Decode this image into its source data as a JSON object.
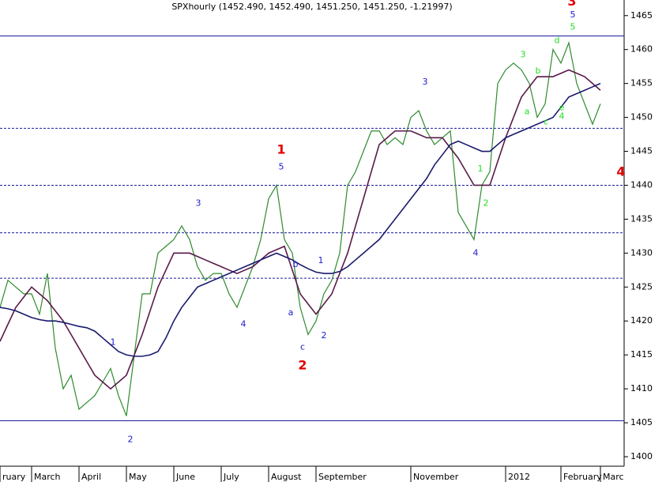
{
  "chart_data": {
    "type": "line",
    "title": "SPXhourly (1452.490, 1452.490, 1451.250, 1451.250, -1.21997)",
    "categories": [
      "ruary",
      null,
      null,
      null,
      "March",
      null,
      null,
      null,
      null,
      null,
      "April",
      null,
      null,
      null,
      null,
      null,
      "May",
      null,
      null,
      null,
      null,
      null,
      "June",
      null,
      null,
      null,
      null,
      null,
      "July",
      null,
      null,
      null,
      null,
      null,
      "August",
      null,
      null,
      null,
      null,
      null,
      "September",
      null,
      null,
      null,
      null,
      null,
      null,
      null,
      null,
      null,
      null,
      null,
      "November",
      null,
      null,
      null,
      null,
      null,
      null,
      null,
      null,
      null,
      null,
      null,
      "2012",
      null,
      null,
      null,
      null,
      null,
      null,
      "February",
      null,
      null,
      null,
      null,
      "Marc"
    ],
    "series": [
      {
        "color": "#2e8b2e",
        "values": [
          1422,
          1426,
          1425,
          1424,
          1424,
          1421,
          1427,
          1416,
          1410,
          1412,
          1407,
          1408,
          1409,
          1411,
          1413,
          1409,
          1406,
          1415,
          1424,
          1424,
          1430,
          1431,
          1432,
          1434,
          1432,
          1428,
          1426,
          1427,
          1427,
          1424,
          1422,
          1425,
          1428,
          1432,
          1438,
          1440,
          1432,
          1430,
          1422,
          1418,
          1420,
          1424,
          1426,
          1430,
          1440,
          1442,
          1445,
          1448,
          1448,
          1446,
          1447,
          1446,
          1450,
          1451,
          1448,
          1446,
          1447,
          1448,
          1436,
          1434,
          1432,
          1440,
          1442,
          1455,
          1457,
          1458,
          1457,
          1455,
          1450,
          1452,
          1460,
          1458,
          1461,
          1455,
          1452,
          1449,
          1452
        ]
      },
      {
        "color": "#5a1a4a",
        "values": [
          1417,
          1419.5,
          1422,
          1423.5,
          1425,
          1424,
          1423,
          1421.5,
          1420,
          1418,
          1416,
          1414,
          1412,
          1411,
          1410,
          1411,
          1412,
          1415,
          1418,
          1421.5,
          1425,
          1427.5,
          1430,
          1430,
          1430,
          1429.5,
          1429,
          1428.5,
          1428,
          1427.5,
          1427,
          1427.5,
          1428,
          1429,
          1430,
          1430.5,
          1431,
          1427.5,
          1424,
          1422.5,
          1421,
          1422.5,
          1424,
          1427,
          1430,
          1434,
          1438,
          1442,
          1446,
          1447,
          1448,
          1448,
          1448,
          1447.5,
          1447,
          1447,
          1447,
          1445.5,
          1444,
          1442,
          1440,
          1440,
          1440,
          1443.5,
          1447,
          1450,
          1453,
          1454.5,
          1456,
          1456,
          1456,
          1456.5,
          1457,
          1456.5,
          1456,
          1455,
          1454
        ]
      },
      {
        "color": "#1a1a6e",
        "values": [
          1422,
          1421.8,
          1421.5,
          1421,
          1420.5,
          1420.2,
          1420,
          1420,
          1419.8,
          1419.5,
          1419.2,
          1419,
          1418.5,
          1417.5,
          1416.5,
          1415.5,
          1415,
          1414.8,
          1414.8,
          1415,
          1415.5,
          1417.5,
          1420,
          1422,
          1423.5,
          1425,
          1425.5,
          1426,
          1426.5,
          1427,
          1427.5,
          1428,
          1428.5,
          1429,
          1429.5,
          1430,
          1429.5,
          1429,
          1428.3,
          1427.7,
          1427.2,
          1427,
          1427,
          1427.3,
          1428,
          1429,
          1430,
          1431,
          1432,
          1433.5,
          1435,
          1436.5,
          1438,
          1439.5,
          1441,
          1443,
          1444.5,
          1446,
          1446.5,
          1446,
          1445.5,
          1445,
          1445,
          1446,
          1447,
          1447.5,
          1448,
          1448.5,
          1449,
          1449.5,
          1450,
          1451.5,
          1453,
          1453.5,
          1454,
          1454.5,
          1455
        ]
      }
    ],
    "ylim": [
      1398.6,
      1467.3
    ],
    "yticks": [
      1400,
      1405,
      1410,
      1415,
      1420,
      1425,
      1430,
      1435,
      1440,
      1445,
      1450,
      1455,
      1460,
      1465
    ],
    "hlines": [
      {
        "value": 1462,
        "style": "solid",
        "color": "#1a1a9e"
      },
      {
        "value": 1405.3,
        "style": "solid",
        "color": "#1a1a9e"
      },
      {
        "value": 1448.4,
        "style": "dashed",
        "color": "#1a1a9e"
      },
      {
        "value": 1440,
        "style": "dashed",
        "color": "#1a1a9e"
      },
      {
        "value": 1433,
        "style": "dashed",
        "color": "#1a1a9e"
      },
      {
        "value": 1426.3,
        "style": "dashed",
        "color": "#1a1a9e"
      }
    ],
    "annotations": [
      {
        "text": "1",
        "x": 35.6,
        "y": 1445.2,
        "color": "#e00000",
        "bold": true
      },
      {
        "text": "5",
        "x": 35.6,
        "y": 1442.7,
        "color": "#1a1acc"
      },
      {
        "text": "2",
        "x": 38.3,
        "y": 1413.4,
        "color": "#e00000",
        "bold": true
      },
      {
        "text": "c",
        "x": 38.3,
        "y": 1416.1,
        "color": "#1a1acc"
      },
      {
        "text": "2",
        "x": 41.0,
        "y": 1417.8,
        "color": "#1a1acc"
      },
      {
        "text": "a",
        "x": 36.8,
        "y": 1421.2,
        "color": "#1a1acc"
      },
      {
        "text": "b",
        "x": 37.4,
        "y": 1428.3,
        "color": "#1a1acc"
      },
      {
        "text": "1",
        "x": 40.6,
        "y": 1428.9,
        "color": "#1a1acc"
      },
      {
        "text": "3",
        "x": 25.1,
        "y": 1437.3,
        "color": "#1a1acc"
      },
      {
        "text": "4",
        "x": 30.8,
        "y": 1419.5,
        "color": "#1a1acc"
      },
      {
        "text": "1",
        "x": 14.3,
        "y": 1416.8,
        "color": "#1a1acc"
      },
      {
        "text": "2",
        "x": 16.5,
        "y": 1402.5,
        "color": "#1a1acc"
      },
      {
        "text": "3",
        "x": 53.8,
        "y": 1455.2,
        "color": "#1a1acc"
      },
      {
        "text": "4",
        "x": 60.2,
        "y": 1430.0,
        "color": "#1a1acc"
      },
      {
        "text": "1",
        "x": 60.8,
        "y": 1442.4,
        "color": "#22dd22"
      },
      {
        "text": "2",
        "x": 61.5,
        "y": 1437.3,
        "color": "#22dd22"
      },
      {
        "text": "3",
        "x": 66.2,
        "y": 1459.2,
        "color": "#22dd22"
      },
      {
        "text": "a",
        "x": 66.7,
        "y": 1450.8,
        "color": "#22dd22"
      },
      {
        "text": "b",
        "x": 68.1,
        "y": 1456.8,
        "color": "#22dd22"
      },
      {
        "text": "c",
        "x": 69.1,
        "y": 1449.3,
        "color": "#22dd22"
      },
      {
        "text": "d",
        "x": 70.5,
        "y": 1461.3,
        "color": "#22dd22"
      },
      {
        "text": "e",
        "x": 71.1,
        "y": 1451.4,
        "color": "#22dd22"
      },
      {
        "text": "4",
        "x": 71.1,
        "y": 1450.1,
        "color": "#22dd22"
      },
      {
        "text": "5",
        "x": 72.5,
        "y": 1463.3,
        "color": "#22dd22"
      },
      {
        "text": "5",
        "x": 72.5,
        "y": 1465.1,
        "color": "#1a1acc"
      },
      {
        "text": "3",
        "x": 72.4,
        "y": 1467.0,
        "color": "#e00000",
        "bold": true
      },
      {
        "text": "4",
        "x": 78.6,
        "y": 1441.9,
        "color": "#e00000",
        "bold": true
      }
    ]
  }
}
